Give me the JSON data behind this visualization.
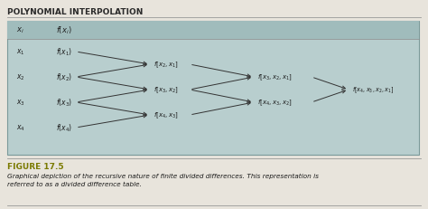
{
  "title": "POLYNOMIAL INTERPOLATION",
  "fig_bg": "#e8e4dc",
  "box_bg": "#b8cece",
  "header_bg": "#a0bcbc",
  "box_border": "#7a9a9a",
  "title_color": "#2a2a2a",
  "text_color": "#1a1a1a",
  "header_text_color": "#222222",
  "arrow_color": "#333333",
  "figure_label": "FIGURE 17.5",
  "figure_label_color": "#7a7a00",
  "caption": "Graphical depiction of the recursive nature of finite divided differences. This representation is\nreferred to as a divided difference table.",
  "caption_color": "#1a1a1a",
  "row_labels": [
    "x_1",
    "x_2",
    "x_3",
    "x_4"
  ],
  "col2_labels": [
    "f(x_1)",
    "f(x_2)",
    "f(x_3)",
    "f(x_4)"
  ],
  "col3_labels": [
    "f[x_2, x_1]",
    "f[x_3, x_2]",
    "f[x_4, x_3]"
  ],
  "col4_labels": [
    "f[x_3, x_2, x_1]",
    "f[x_4, x_3, x_2]"
  ],
  "col5_labels": [
    "f[x_4, x_3, x_2, x_1]"
  ],
  "hline_color": "#999999",
  "sep_line_color": "#888888"
}
